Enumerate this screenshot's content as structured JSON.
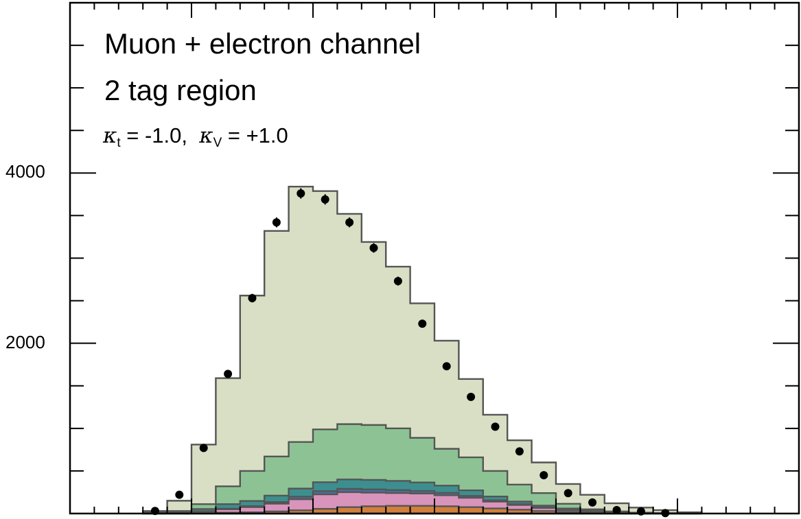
{
  "chart_data": {
    "type": "stacked-histogram",
    "annotations": {
      "line1": "Muon + electron channel",
      "line2": "2 tag region",
      "kappa_t_symbol": "κ",
      "kappa_t_sub": "t",
      "kappa_t_value": " = -1.0,",
      "kappa_v_symbol": "κ",
      "kappa_v_sub": "V",
      "kappa_v_value": " = +1.0"
    },
    "y_axis": {
      "range": [
        0,
        6000
      ],
      "tick_labels": [
        "2000",
        "4000"
      ],
      "major_ticks": [
        2000,
        4000
      ]
    },
    "x_axis": {
      "range": [
        0,
        30
      ]
    },
    "colors": {
      "c1": "#d07f3c",
      "c2": "#d994bb",
      "c3": "#4a6e9c",
      "c4": "#3d8f8f",
      "c5": "#8dc394",
      "c6": "#d8dfc4",
      "outline": "#555555"
    },
    "bins": [
      3,
      4,
      5,
      6,
      7,
      8,
      9,
      10,
      11,
      12,
      13,
      14,
      15,
      16,
      17,
      18,
      19,
      20,
      21,
      22,
      23,
      24,
      25
    ],
    "stack": [
      {
        "color_key": "c1",
        "values": [
          0,
          0,
          5,
          10,
          15,
          25,
          38,
          55,
          75,
          85,
          90,
          90,
          85,
          75,
          60,
          45,
          30,
          20,
          12,
          6,
          3,
          1,
          0
        ]
      },
      {
        "color_key": "c2",
        "values": [
          2,
          5,
          20,
          40,
          60,
          90,
          130,
          170,
          175,
          160,
          150,
          145,
          130,
          110,
          80,
          55,
          35,
          20,
          10,
          5,
          2,
          1,
          0
        ]
      },
      {
        "color_key": "c3",
        "values": [
          0,
          0,
          3,
          8,
          12,
          20,
          30,
          38,
          40,
          38,
          35,
          30,
          28,
          22,
          15,
          10,
          8,
          4,
          2,
          1,
          0,
          0,
          0
        ]
      },
      {
        "color_key": "c4",
        "values": [
          3,
          10,
          25,
          52,
          60,
          75,
          95,
          105,
          110,
          112,
          108,
          100,
          85,
          65,
          45,
          30,
          20,
          15,
          8,
          5,
          3,
          1,
          0
        ]
      },
      {
        "color_key": "c5",
        "values": [
          5,
          15,
          57,
          210,
          353,
          460,
          547,
          620,
          650,
          645,
          617,
          524,
          432,
          388,
          300,
          200,
          147,
          55,
          18,
          8,
          2,
          1,
          0
        ]
      },
      {
        "color_key": "c6",
        "values": [
          20,
          120,
          700,
          1270,
          2060,
          2650,
          3000,
          2800,
          2470,
          2150,
          1900,
          1580,
          1270,
          920,
          660,
          520,
          360,
          233,
          170,
          95,
          60,
          36,
          15
        ]
      }
    ],
    "data_points": {
      "x": [
        3.5,
        4.5,
        5.5,
        6.5,
        7.5,
        8.5,
        9.5,
        10.5,
        11.5,
        12.5,
        13.5,
        14.5,
        15.5,
        16.5,
        17.5,
        18.5,
        19.5,
        20.5,
        21.5,
        22.5,
        23.5,
        24.5
      ],
      "y": [
        30,
        220,
        770,
        1640,
        2530,
        3420,
        3760,
        3690,
        3420,
        3120,
        2730,
        2230,
        1730,
        1370,
        1020,
        730,
        450,
        240,
        130,
        40,
        25,
        5
      ],
      "err": [
        6,
        15,
        28,
        40,
        50,
        58,
        61,
        61,
        58,
        56,
        52,
        47,
        42,
        37,
        32,
        27,
        21,
        15,
        11,
        6,
        5,
        2
      ]
    }
  }
}
